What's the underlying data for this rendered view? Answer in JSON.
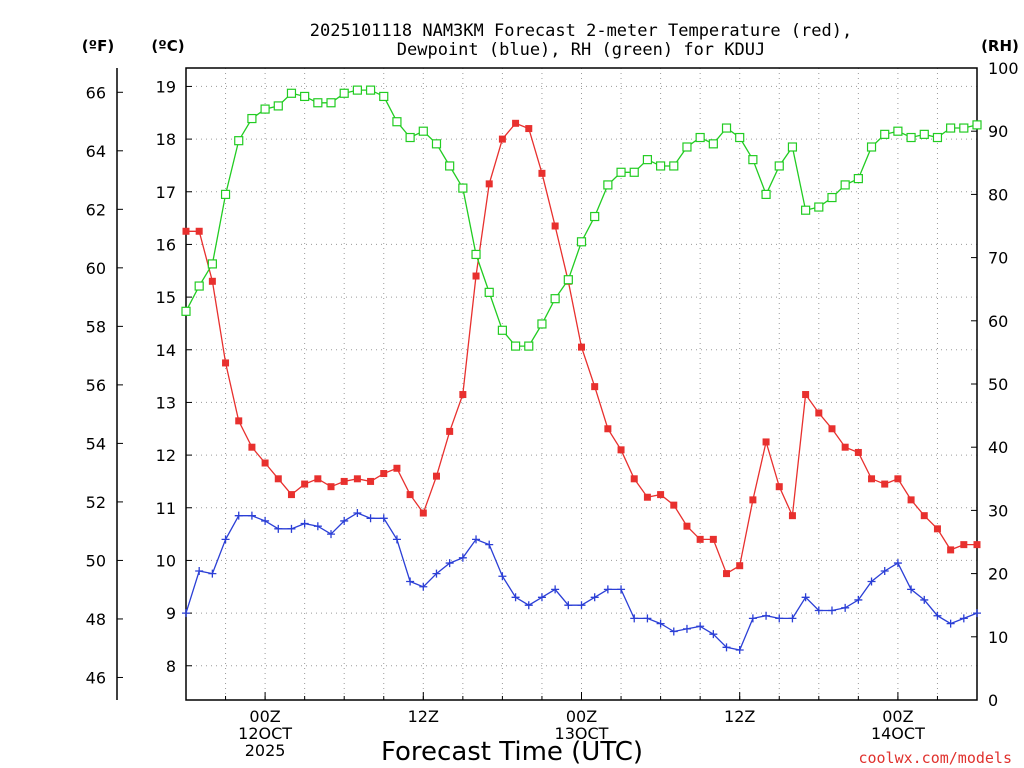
{
  "chart_data": {
    "type": "line",
    "title": [
      "2025101118 NAM3KM Forecast 2-meter Temperature (red),",
      "Dewpoint (blue), RH (green) for KDUJ"
    ],
    "xlabel": "Forecast Time (UTC)",
    "credit": "coolwx.com/models",
    "axis_units": {
      "fahrenheit": "(ºF)",
      "celsius": "(ºC)",
      "rh": "(RH)"
    },
    "x_ticks": [
      {
        "hour": 6,
        "lines": [
          "00Z",
          "12OCT",
          "2025"
        ]
      },
      {
        "hour": 18,
        "lines": [
          "12Z"
        ]
      },
      {
        "hour": 30,
        "lines": [
          "00Z",
          "13OCT"
        ]
      },
      {
        "hour": 42,
        "lines": [
          "12Z"
        ]
      },
      {
        "hour": 54,
        "lines": [
          "00Z",
          "14OCT"
        ]
      }
    ],
    "xlim": [
      0,
      60
    ],
    "ylim_celsius": [
      7.35,
      19.35
    ],
    "yticks_celsius": [
      8,
      9,
      10,
      11,
      12,
      13,
      14,
      15,
      16,
      17,
      18,
      19
    ],
    "yticks_fahrenheit": [
      46,
      48,
      50,
      52,
      54,
      56,
      58,
      60,
      62,
      64,
      66
    ],
    "ylim_rh": [
      0,
      100
    ],
    "yticks_rh": [
      0,
      10,
      20,
      30,
      40,
      50,
      60,
      70,
      80,
      90,
      100
    ],
    "x_hours": [
      0,
      1,
      2,
      3,
      4,
      5,
      6,
      7,
      8,
      9,
      10,
      11,
      12,
      13,
      14,
      15,
      16,
      17,
      18,
      19,
      20,
      21,
      22,
      23,
      24,
      25,
      26,
      27,
      28,
      29,
      30,
      31,
      32,
      33,
      34,
      35,
      36,
      37,
      38,
      39,
      40,
      41,
      42,
      43,
      44,
      45,
      46,
      47,
      48,
      49,
      50,
      51,
      52,
      53,
      54,
      55,
      56,
      57,
      58,
      59,
      60
    ],
    "series": [
      {
        "name": "2-meter Temperature",
        "unit": "C",
        "color": "#e8302e",
        "marker": "filled-square",
        "values": [
          16.25,
          16.25,
          15.3,
          13.75,
          12.65,
          12.15,
          11.85,
          11.55,
          11.25,
          11.45,
          11.55,
          11.4,
          11.5,
          11.55,
          11.5,
          11.65,
          11.75,
          11.25,
          10.9,
          11.6,
          12.45,
          13.15,
          15.4,
          17.15,
          18.0,
          18.3,
          18.2,
          17.35,
          16.35,
          15.3,
          14.05,
          13.3,
          12.5,
          12.1,
          11.55,
          11.2,
          11.25,
          11.05,
          10.65,
          10.4,
          10.4,
          9.75,
          9.9,
          11.15,
          12.25,
          11.4,
          10.85,
          13.15,
          12.8,
          12.5,
          12.15,
          12.05,
          11.55,
          11.45,
          11.55,
          11.15,
          10.85,
          10.6,
          10.2,
          10.3,
          10.3
        ]
      },
      {
        "name": "Dewpoint",
        "unit": "C",
        "color": "#2b3fd6",
        "marker": "plus",
        "values": [
          9.0,
          9.8,
          9.75,
          10.4,
          10.85,
          10.85,
          10.75,
          10.6,
          10.6,
          10.7,
          10.65,
          10.5,
          10.75,
          10.9,
          10.8,
          10.8,
          10.4,
          9.6,
          9.5,
          9.75,
          9.95,
          10.05,
          10.4,
          10.3,
          9.7,
          9.3,
          9.15,
          9.3,
          9.45,
          9.15,
          9.15,
          9.3,
          9.45,
          9.45,
          8.9,
          8.9,
          8.8,
          8.65,
          8.7,
          8.75,
          8.6,
          8.35,
          8.3,
          8.9,
          8.95,
          8.9,
          8.9,
          9.3,
          9.05,
          9.05,
          9.1,
          9.25,
          9.6,
          9.8,
          9.95,
          9.45,
          9.25,
          8.95,
          8.8,
          8.9,
          9.0
        ]
      },
      {
        "name": "RH",
        "unit": "%",
        "color": "#22cc22",
        "marker": "open-square",
        "values": [
          61.5,
          65.5,
          69.0,
          80.0,
          88.5,
          92.0,
          93.5,
          94.0,
          96.0,
          95.5,
          94.5,
          94.5,
          96.0,
          96.5,
          96.5,
          95.5,
          91.5,
          89.0,
          90.0,
          88.0,
          84.5,
          81.0,
          70.5,
          64.5,
          58.5,
          56.0,
          56.0,
          59.5,
          63.5,
          66.5,
          72.5,
          76.5,
          81.5,
          83.5,
          83.5,
          85.5,
          84.5,
          84.5,
          87.5,
          89.0,
          88.0,
          90.5,
          89.0,
          85.5,
          80.0,
          84.5,
          87.5,
          77.5,
          78.0,
          79.5,
          81.5,
          82.5,
          87.5,
          89.5,
          90.0,
          89.0,
          89.5,
          89.0,
          90.5,
          90.5,
          91.0
        ]
      }
    ]
  }
}
